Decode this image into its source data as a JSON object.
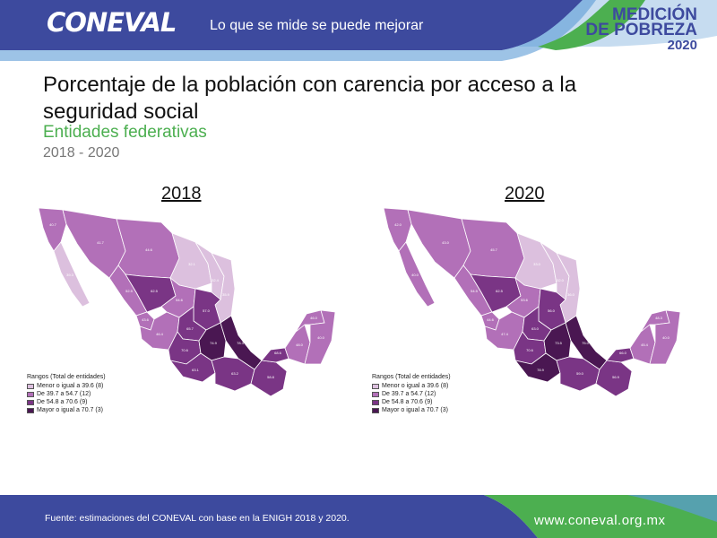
{
  "header": {
    "logo": "CONEVAL",
    "tagline": "Lo que se mide se puede mejorar",
    "badge_line1": "MEDICIÓN",
    "badge_line2": "DE POBREZA",
    "badge_line3": "2020"
  },
  "title": {
    "part1": "Porcentaje de la población con ",
    "part2": "carencia por acceso a la seguridad social",
    "subtitle": "Entidades federativas",
    "years": "2018 - 2020"
  },
  "colors": {
    "range1": "#dcc0de",
    "range2": "#b270b8",
    "range3": "#7a3585",
    "range4": "#4a1752",
    "header_blue": "#3d4a9e",
    "green": "#4caf50"
  },
  "legend": {
    "header": "Rangos     (Total de entidades)",
    "items": [
      "Menor o igual a 39.6 (8)",
      "De 39.7 a 54.7 (12)",
      "De 54.8 a 70.6 (9)",
      "Mayor o igual a 70.7 (3)"
    ]
  },
  "maps": [
    {
      "year": "2018",
      "values": [
        "40.7",
        "39.3",
        "41.7",
        "44.6",
        "32.1",
        "32.4",
        "35.9",
        "52.5",
        "62.5",
        "54.6",
        "57.0",
        "43.6",
        "46.4",
        "65.7",
        "70.6",
        "74.9",
        "78.3",
        "63.1",
        "63.2",
        "58.8",
        "68.6",
        "48.0",
        "46.0",
        "40.0"
      ]
    },
    {
      "year": "2020",
      "values": [
        "42.0",
        "40.0",
        "43.0",
        "45.7",
        "33.0",
        "32.0",
        "36.0",
        "54.5",
        "62.5",
        "53.6",
        "56.0",
        "44.6",
        "47.4",
        "63.0",
        "70.6",
        "73.5",
        "75.0",
        "78.9",
        "59.0",
        "56.9",
        "66.0",
        "45.4",
        "48.3",
        "40.0"
      ]
    }
  ],
  "footer": {
    "source": "Fuente: estimaciones del CONEVAL con base en la ENIGH 2018 y 2020.",
    "url": "www.coneval.org.mx"
  }
}
